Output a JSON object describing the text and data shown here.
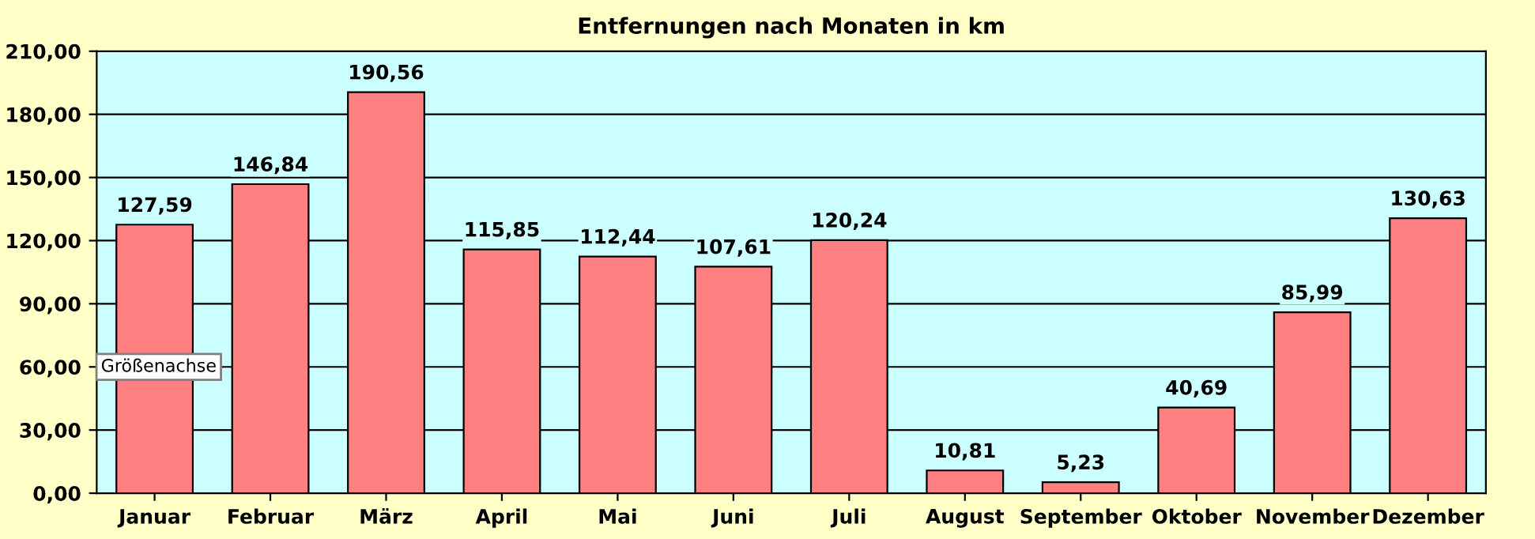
{
  "chart_data": {
    "type": "bar",
    "title": "Entfernungen nach Monaten in km",
    "categories": [
      "Januar",
      "Februar",
      "März",
      "April",
      "Mai",
      "Juni",
      "Juli",
      "August",
      "September",
      "Oktober",
      "November",
      "Dezember"
    ],
    "values": [
      127.59,
      146.84,
      190.56,
      115.85,
      112.44,
      107.61,
      120.24,
      10.81,
      5.23,
      40.69,
      85.99,
      130.63
    ],
    "value_labels": [
      "127,59",
      "146,84",
      "190,56",
      "115,85",
      "112,44",
      "107,61",
      "120,24",
      "10,81",
      "5,23",
      "40,69",
      "85,99",
      "130,63"
    ],
    "color": "#ff8080",
    "ylim": [
      0,
      210
    ],
    "yticks": [
      {
        "value": 0,
        "label": "0,00"
      },
      {
        "value": 30,
        "label": "30,00"
      },
      {
        "value": 60,
        "label": "60,00"
      },
      {
        "value": 90,
        "label": "90,00"
      },
      {
        "value": 120,
        "label": "120,00"
      },
      {
        "value": 150,
        "label": "150,00"
      },
      {
        "value": 180,
        "label": "180,00"
      },
      {
        "value": 210,
        "label": "210,00"
      }
    ],
    "grid": "y",
    "legend": false,
    "annotations": [
      "Größenachse"
    ]
  }
}
